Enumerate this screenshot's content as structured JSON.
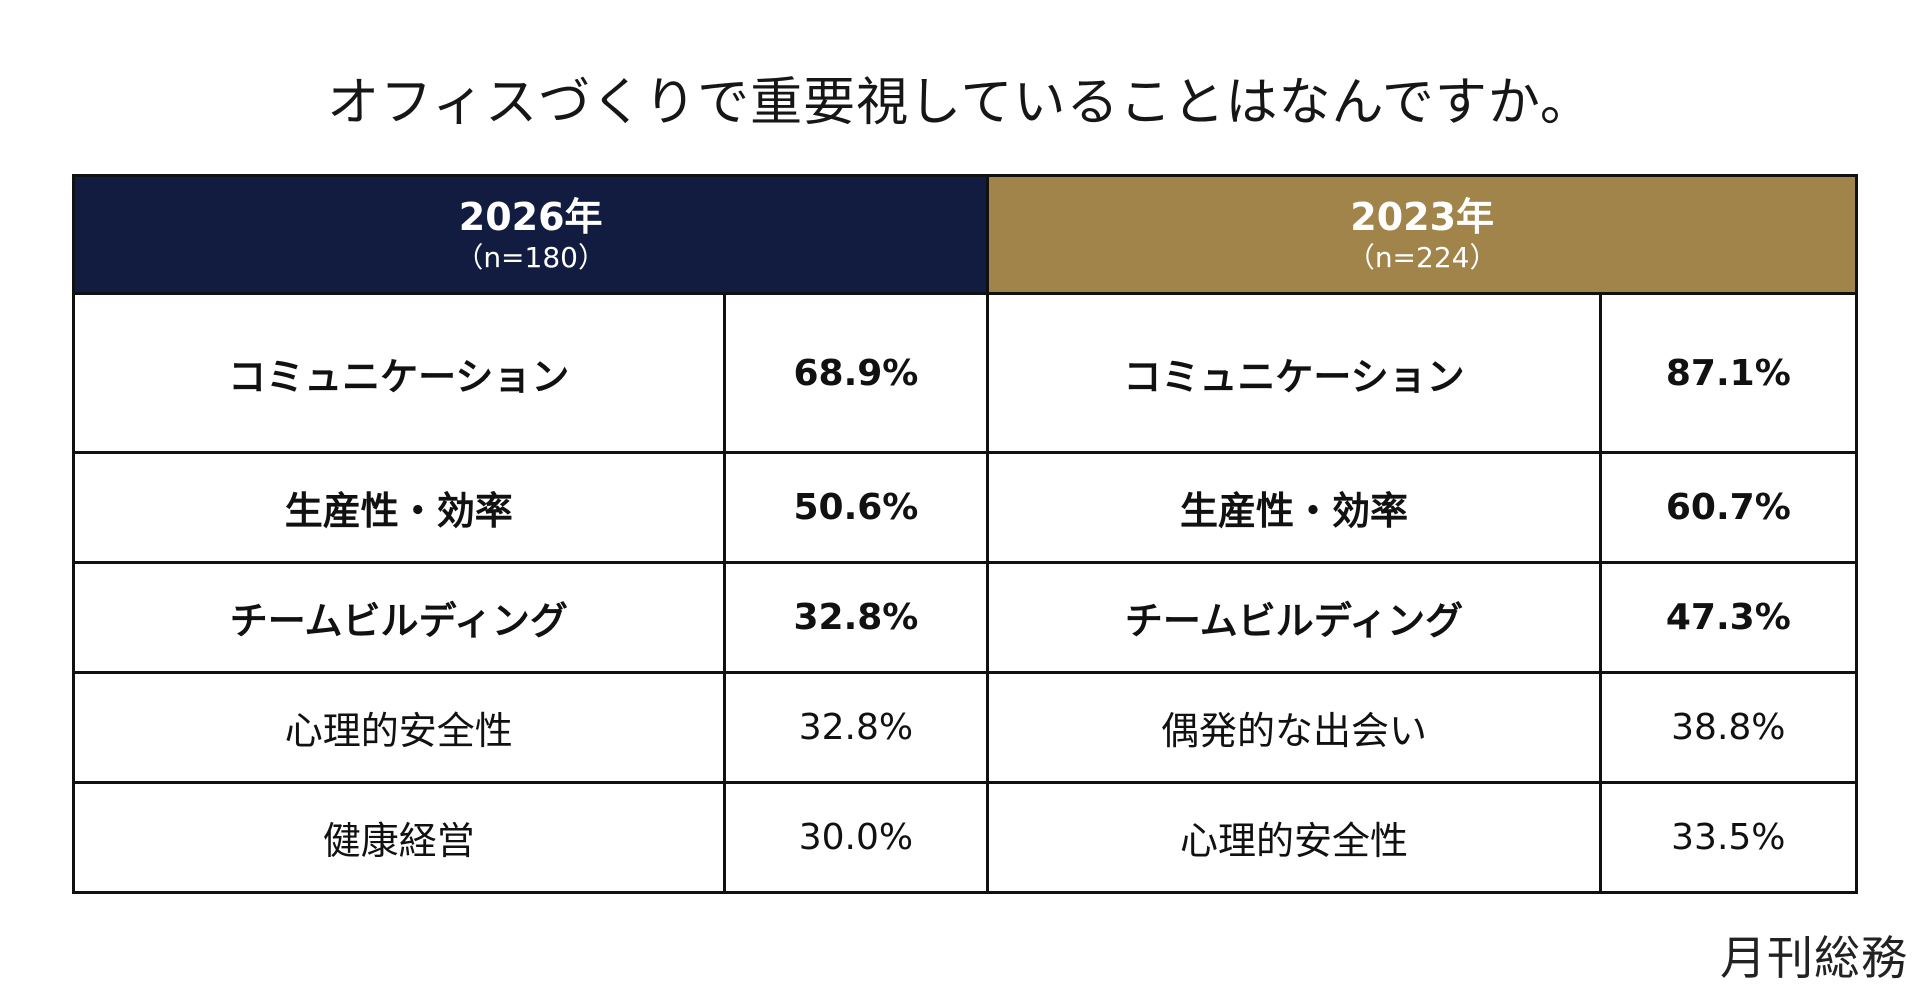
{
  "title": "オフィスづくりで重要視していることはなんですか。",
  "colors": {
    "year_2026_header": "#121c40",
    "year_2023_header": "#a08449"
  },
  "chart_data": {
    "type": "table",
    "title": "オフィスづくりで重要視していることはなんですか。",
    "groups": [
      {
        "year": "2026年",
        "n": "（n=180）",
        "rows": [
          {
            "item": "コミュニケーション",
            "value": "68.9%"
          },
          {
            "item": "生産性・効率",
            "value": "50.6%"
          },
          {
            "item": "チームビルディング",
            "value": "32.8%"
          },
          {
            "item": "心理的安全性",
            "value": "32.8%"
          },
          {
            "item": "健康経営",
            "value": "30.0%"
          }
        ]
      },
      {
        "year": "2023年",
        "n": "（n=224）",
        "rows": [
          {
            "item": "コミュニケーション",
            "value": "87.1%"
          },
          {
            "item": "生産性・効率",
            "value": "60.7%"
          },
          {
            "item": "チームビルディング",
            "value": "47.3%"
          },
          {
            "item": "偶発的な出会い",
            "value": "38.8%"
          },
          {
            "item": "心理的安全性",
            "value": "33.5%"
          }
        ]
      }
    ],
    "bold_rows": 3
  },
  "brand": "月刊総務"
}
